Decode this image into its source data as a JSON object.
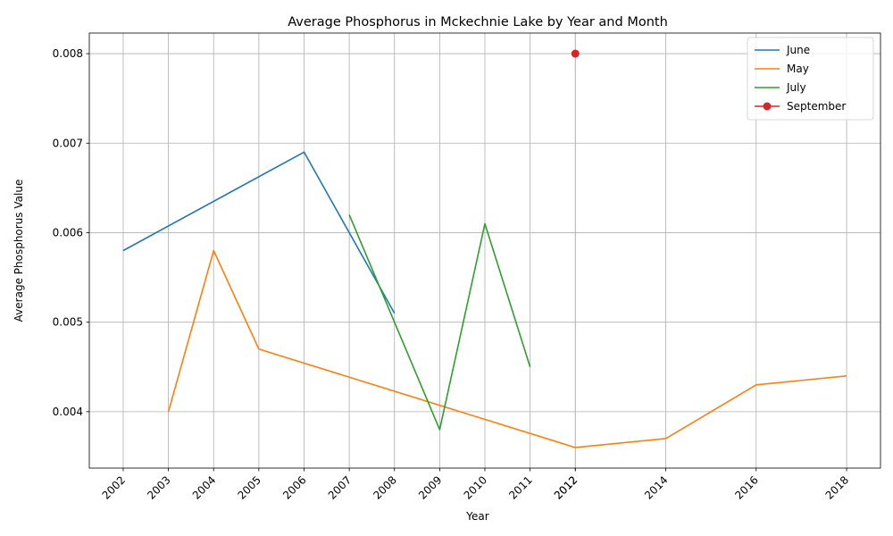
{
  "chart_data": {
    "type": "line",
    "title": "Average Phosphorus in Mckechnie Lake by Year and Month",
    "xlabel": "Year",
    "ylabel": "Average Phosphorus Value",
    "xlim": [
      2001.25,
      2018.75
    ],
    "ylim": [
      0.00337,
      0.00823
    ],
    "x_ticks": [
      "2002",
      "2003",
      "2004",
      "2005",
      "2006",
      "2007",
      "2008",
      "2009",
      "2010",
      "2011",
      "2012",
      "2012",
      "2014",
      "2016",
      "2018"
    ],
    "x_tick_values": [
      2002,
      2003,
      2004,
      2005,
      2006,
      2007,
      2008,
      2009,
      2010,
      2011,
      2012,
      2012,
      2014,
      2016,
      2018
    ],
    "y_ticks": [
      "0.004",
      "0.005",
      "0.006",
      "0.007",
      "0.008"
    ],
    "y_tick_values": [
      0.004,
      0.005,
      0.006,
      0.007,
      0.008
    ],
    "grid": true,
    "legend_position": "top-right",
    "series": [
      {
        "name": "June",
        "color": "#1f77b4",
        "marker": "none",
        "x": [
          2002,
          2006,
          2008
        ],
        "y": [
          0.0058,
          0.0069,
          0.0051
        ]
      },
      {
        "name": "May",
        "color": "#ff7f0e",
        "marker": "none",
        "x": [
          2003,
          2004,
          2005,
          2012,
          2014,
          2016,
          2018
        ],
        "y": [
          0.004,
          0.0058,
          0.0047,
          0.0036,
          0.0037,
          0.0043,
          0.0044
        ]
      },
      {
        "name": "July",
        "color": "#2ca02c",
        "marker": "none",
        "x": [
          2007,
          2009,
          2010,
          2011
        ],
        "y": [
          0.0062,
          0.0038,
          0.0061,
          0.0045
        ]
      },
      {
        "name": "September",
        "color": "#d62728",
        "marker": "circle",
        "x": [
          2012
        ],
        "y": [
          0.008
        ]
      }
    ]
  }
}
